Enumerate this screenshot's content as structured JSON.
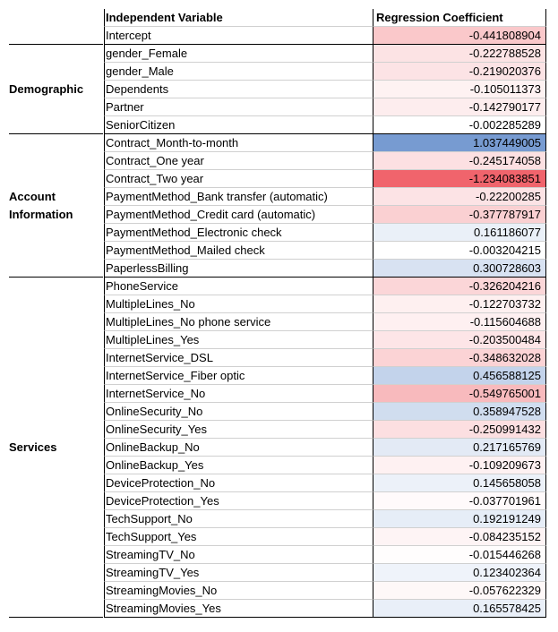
{
  "headers": {
    "variable": "Independent Variable",
    "coefficient": "Regression Coefficient"
  },
  "groups": [
    {
      "label": "",
      "rows": [
        {
          "name": "Intercept",
          "value": "-0.441808904",
          "num": -0.441808904
        }
      ]
    },
    {
      "label": "Demographic",
      "rows": [
        {
          "name": "gender_Female",
          "value": "-0.222788528",
          "num": -0.222788528
        },
        {
          "name": "gender_Male",
          "value": "-0.219020376",
          "num": -0.219020376
        },
        {
          "name": "Dependents",
          "value": "-0.105011373",
          "num": -0.105011373
        },
        {
          "name": "Partner",
          "value": "-0.142790177",
          "num": -0.142790177
        },
        {
          "name": "SeniorCitizen",
          "value": "-0.002285289",
          "num": -0.002285289
        }
      ]
    },
    {
      "label": "Account Information",
      "rows": [
        {
          "name": "Contract_Month-to-month",
          "value": "1.037449005",
          "num": 1.037449005
        },
        {
          "name": "Contract_One year",
          "value": "-0.245174058",
          "num": -0.245174058
        },
        {
          "name": "Contract_Two year",
          "value": "-1.234083851",
          "num": -1.234083851
        },
        {
          "name": "PaymentMethod_Bank transfer (automatic)",
          "value": "-0.22200285",
          "num": -0.22200285
        },
        {
          "name": "PaymentMethod_Credit card (automatic)",
          "value": "-0.377787917",
          "num": -0.377787917
        },
        {
          "name": "PaymentMethod_Electronic check",
          "value": "0.161186077",
          "num": 0.161186077
        },
        {
          "name": "PaymentMethod_Mailed check",
          "value": "-0.003204215",
          "num": -0.003204215
        },
        {
          "name": "PaperlessBilling",
          "value": "0.300728603",
          "num": 0.300728603
        }
      ]
    },
    {
      "label": "Services",
      "rows": [
        {
          "name": "PhoneService",
          "value": "-0.326204216",
          "num": -0.326204216
        },
        {
          "name": "MultipleLines_No",
          "value": "-0.122703732",
          "num": -0.122703732
        },
        {
          "name": "MultipleLines_No phone service",
          "value": "-0.115604688",
          "num": -0.115604688
        },
        {
          "name": "MultipleLines_Yes",
          "value": "-0.203500484",
          "num": -0.203500484
        },
        {
          "name": "InternetService_DSL",
          "value": "-0.348632028",
          "num": -0.348632028
        },
        {
          "name": "InternetService_Fiber optic",
          "value": "0.456588125",
          "num": 0.456588125
        },
        {
          "name": "InternetService_No",
          "value": "-0.549765001",
          "num": -0.549765001
        },
        {
          "name": "OnlineSecurity_No",
          "value": "0.358947528",
          "num": 0.358947528
        },
        {
          "name": "OnlineSecurity_Yes",
          "value": "-0.250991432",
          "num": -0.250991432
        },
        {
          "name": "OnlineBackup_No",
          "value": "0.217165769",
          "num": 0.217165769
        },
        {
          "name": "OnlineBackup_Yes",
          "value": "-0.109209673",
          "num": -0.109209673
        },
        {
          "name": "DeviceProtection_No",
          "value": "0.145658058",
          "num": 0.145658058
        },
        {
          "name": "DeviceProtection_Yes",
          "value": "-0.037701961",
          "num": -0.037701961
        },
        {
          "name": "TechSupport_No",
          "value": "0.192191249",
          "num": 0.192191249
        },
        {
          "name": "TechSupport_Yes",
          "value": "-0.084235152",
          "num": -0.084235152
        },
        {
          "name": "StreamingTV_No",
          "value": "-0.015446268",
          "num": -0.015446268
        },
        {
          "name": "StreamingTV_Yes",
          "value": "0.123402364",
          "num": 0.123402364
        },
        {
          "name": "StreamingMovies_No",
          "value": "-0.057622329",
          "num": -0.057622329
        },
        {
          "name": "StreamingMovies_Yes",
          "value": "0.165578425",
          "num": 0.165578425
        }
      ]
    }
  ],
  "colors": {
    "positive": "#5b87c8",
    "negative": "#f0626a",
    "neutral": "#ffffff"
  }
}
